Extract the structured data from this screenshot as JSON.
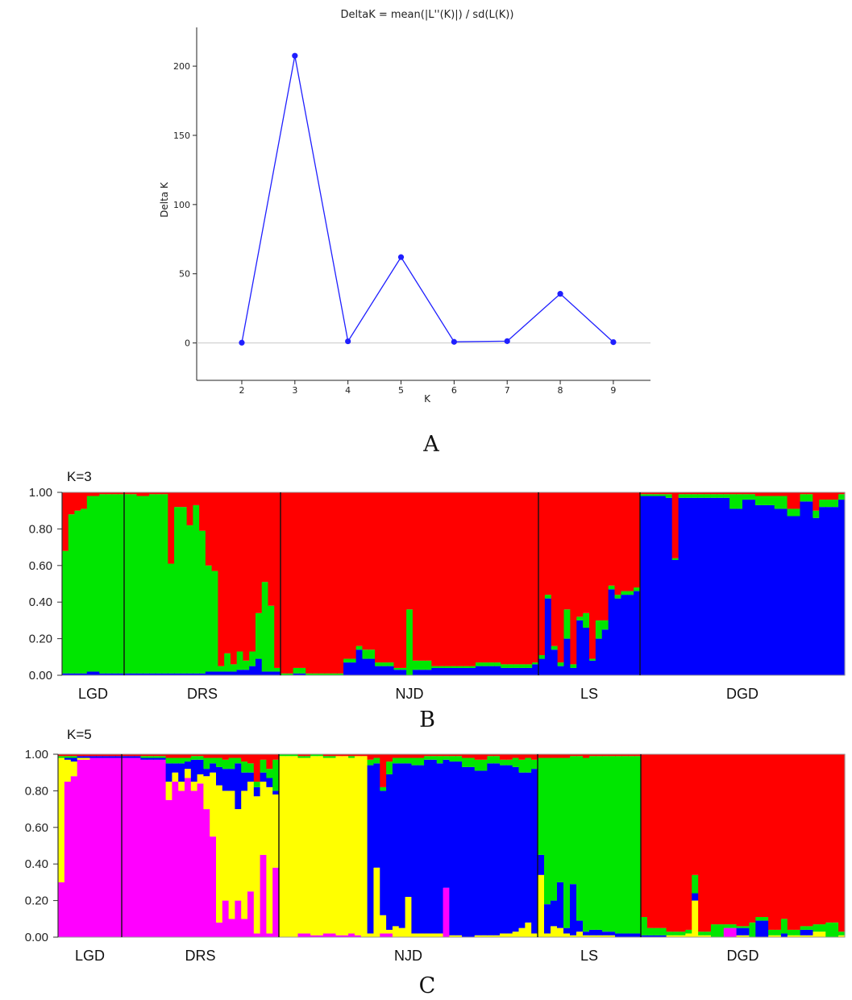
{
  "chart_data": [
    {
      "type": "line",
      "panel_label": "A",
      "title": "DeltaK = mean(|L''(K)|) / sd(L(K))",
      "xlabel": "K",
      "ylabel": "Delta K",
      "x": [
        2,
        3,
        4,
        5,
        6,
        7,
        8,
        9
      ],
      "x_ticks": [
        "2",
        "3",
        "4",
        "5",
        "6",
        "7",
        "8",
        "9"
      ],
      "y_ticks": [
        "0",
        "50",
        "100",
        "150",
        "200"
      ],
      "series": [
        {
          "values": [
            0.2,
            207.5,
            1.2,
            62.0,
            0.8,
            1.3,
            35.5,
            0.6
          ]
        }
      ],
      "xlim": [
        1.15,
        9.7
      ],
      "ylim": [
        -27,
        228
      ],
      "reference_line_y": 0,
      "color": "#1f1fff",
      "grid": false,
      "legend": "none"
    },
    {
      "type": "bar",
      "stacked": true,
      "panel_label": "B",
      "title": "K=3",
      "groups": [
        {
          "label": "LGD",
          "n": 10
        },
        {
          "label": "DRS",
          "n": 25
        },
        {
          "label": "NJD",
          "n": 41
        },
        {
          "label": "LS",
          "n": 16
        },
        {
          "label": "DGD",
          "n": 32
        }
      ],
      "y_ticks": [
        "1.00",
        "0.80",
        "0.60",
        "0.40",
        "0.20",
        "0.00"
      ],
      "ylim": [
        0,
        1
      ],
      "clusters": [
        {
          "color": "#0000ff"
        },
        {
          "color": "#00e600"
        },
        {
          "color": "#ff0000"
        }
      ],
      "anchors": [
        [
          0,
          0.01,
          0.67,
          0.32
        ],
        [
          1,
          0.01,
          0.87,
          0.12
        ],
        [
          2,
          0.01,
          0.89,
          0.1
        ],
        [
          3,
          0.01,
          0.9,
          0.09
        ],
        [
          4,
          0.02,
          0.96,
          0.02
        ],
        [
          6,
          0.01,
          0.98,
          0.01
        ],
        [
          9,
          0.01,
          0.98,
          0.01
        ],
        [
          10,
          0.01,
          0.98,
          0.01
        ],
        [
          12,
          0.01,
          0.97,
          0.02
        ],
        [
          14,
          0.01,
          0.98,
          0.01
        ],
        [
          17,
          0.01,
          0.6,
          0.39
        ],
        [
          18,
          0.01,
          0.91,
          0.08
        ],
        [
          20,
          0.01,
          0.81,
          0.18
        ],
        [
          21,
          0.01,
          0.92,
          0.07
        ],
        [
          22,
          0.01,
          0.78,
          0.21
        ],
        [
          23,
          0.02,
          0.58,
          0.4
        ],
        [
          24,
          0.02,
          0.55,
          0.43
        ],
        [
          25,
          0.02,
          0.03,
          0.95
        ],
        [
          26,
          0.02,
          0.1,
          0.88
        ],
        [
          27,
          0.02,
          0.04,
          0.94
        ],
        [
          28,
          0.03,
          0.1,
          0.87
        ],
        [
          29,
          0.03,
          0.05,
          0.92
        ],
        [
          30,
          0.05,
          0.08,
          0.87
        ],
        [
          31,
          0.09,
          0.25,
          0.66
        ],
        [
          32,
          0.02,
          0.49,
          0.49
        ],
        [
          33,
          0.02,
          0.36,
          0.62
        ],
        [
          34,
          0.02,
          0.02,
          0.96
        ],
        [
          35,
          0.0,
          0.01,
          0.99
        ],
        [
          37,
          0.01,
          0.03,
          0.96
        ],
        [
          39,
          0.0,
          0.01,
          0.99
        ],
        [
          45,
          0.07,
          0.02,
          0.91
        ],
        [
          47,
          0.14,
          0.02,
          0.84
        ],
        [
          48,
          0.09,
          0.05,
          0.86
        ],
        [
          50,
          0.05,
          0.02,
          0.93
        ],
        [
          53,
          0.03,
          0.01,
          0.96
        ],
        [
          55,
          0.0,
          0.36,
          0.64
        ],
        [
          56,
          0.03,
          0.05,
          0.92
        ],
        [
          59,
          0.04,
          0.01,
          0.95
        ],
        [
          62,
          0.04,
          0.01,
          0.95
        ],
        [
          66,
          0.05,
          0.02,
          0.93
        ],
        [
          70,
          0.04,
          0.02,
          0.94
        ],
        [
          75,
          0.06,
          0.01,
          0.93
        ],
        [
          76,
          0.09,
          0.02,
          0.89
        ],
        [
          77,
          0.42,
          0.02,
          0.56
        ],
        [
          78,
          0.14,
          0.02,
          0.84
        ],
        [
          79,
          0.05,
          0.02,
          0.93
        ],
        [
          80,
          0.2,
          0.16,
          0.64
        ],
        [
          81,
          0.04,
          0.02,
          0.94
        ],
        [
          82,
          0.3,
          0.02,
          0.68
        ],
        [
          83,
          0.26,
          0.08,
          0.66
        ],
        [
          84,
          0.08,
          0.01,
          0.91
        ],
        [
          85,
          0.2,
          0.1,
          0.7
        ],
        [
          86,
          0.25,
          0.05,
          0.7
        ],
        [
          87,
          0.47,
          0.02,
          0.51
        ],
        [
          88,
          0.42,
          0.02,
          0.56
        ],
        [
          89,
          0.44,
          0.02,
          0.54
        ],
        [
          91,
          0.46,
          0.02,
          0.52
        ],
        [
          92,
          0.98,
          0.01,
          0.01
        ],
        [
          96,
          0.97,
          0.02,
          0.01
        ],
        [
          97,
          0.63,
          0.01,
          0.36
        ],
        [
          98,
          0.97,
          0.02,
          0.01
        ],
        [
          102,
          0.97,
          0.02,
          0.01
        ],
        [
          106,
          0.91,
          0.08,
          0.01
        ],
        [
          108,
          0.96,
          0.03,
          0.01
        ],
        [
          110,
          0.93,
          0.05,
          0.02
        ],
        [
          113,
          0.91,
          0.07,
          0.02
        ],
        [
          115,
          0.87,
          0.04,
          0.09
        ],
        [
          117,
          0.95,
          0.04,
          0.01
        ],
        [
          119,
          0.86,
          0.04,
          0.1
        ],
        [
          120,
          0.92,
          0.04,
          0.04
        ],
        [
          123,
          0.96,
          0.03,
          0.01
        ]
      ]
    },
    {
      "type": "bar",
      "stacked": true,
      "panel_label": "C",
      "title": "K=5",
      "groups": [
        {
          "label": "LGD",
          "n": 10
        },
        {
          "label": "DRS",
          "n": 25
        },
        {
          "label": "NJD",
          "n": 41
        },
        {
          "label": "LS",
          "n": 16
        },
        {
          "label": "DGD",
          "n": 32
        }
      ],
      "y_ticks": [
        "1.00",
        "0.80",
        "0.60",
        "0.40",
        "0.20",
        "0.00"
      ],
      "ylim": [
        0,
        1
      ],
      "clusters": [
        {
          "color": "#ff00ff"
        },
        {
          "color": "#ffff00"
        },
        {
          "color": "#0000ff"
        },
        {
          "color": "#00e600"
        },
        {
          "color": "#ff0000"
        }
      ],
      "anchors": [
        [
          0,
          0.3,
          0.68,
          0.0,
          0.01,
          0.01
        ],
        [
          1,
          0.85,
          0.12,
          0.01,
          0.01,
          0.01
        ],
        [
          2,
          0.88,
          0.08,
          0.02,
          0.01,
          0.01
        ],
        [
          3,
          0.97,
          0.01,
          0.01,
          0.0,
          0.01
        ],
        [
          5,
          0.98,
          0.0,
          0.01,
          0.0,
          0.01
        ],
        [
          9,
          0.98,
          0.0,
          0.01,
          0.0,
          0.01
        ],
        [
          10,
          0.98,
          0.0,
          0.01,
          0.0,
          0.01
        ],
        [
          13,
          0.97,
          0.0,
          0.01,
          0.01,
          0.01
        ],
        [
          17,
          0.75,
          0.1,
          0.1,
          0.03,
          0.02
        ],
        [
          18,
          0.85,
          0.05,
          0.05,
          0.03,
          0.02
        ],
        [
          19,
          0.8,
          0.05,
          0.1,
          0.03,
          0.02
        ],
        [
          20,
          0.87,
          0.05,
          0.04,
          0.02,
          0.02
        ],
        [
          21,
          0.8,
          0.05,
          0.12,
          0.02,
          0.01
        ],
        [
          22,
          0.84,
          0.05,
          0.08,
          0.02,
          0.01
        ],
        [
          23,
          0.7,
          0.18,
          0.04,
          0.06,
          0.02
        ],
        [
          24,
          0.55,
          0.35,
          0.05,
          0.03,
          0.02
        ],
        [
          25,
          0.08,
          0.75,
          0.1,
          0.05,
          0.02
        ],
        [
          26,
          0.2,
          0.6,
          0.12,
          0.05,
          0.03
        ],
        [
          27,
          0.1,
          0.7,
          0.12,
          0.06,
          0.02
        ],
        [
          28,
          0.2,
          0.5,
          0.25,
          0.03,
          0.02
        ],
        [
          29,
          0.1,
          0.7,
          0.1,
          0.06,
          0.04
        ],
        [
          30,
          0.25,
          0.6,
          0.05,
          0.05,
          0.05
        ],
        [
          31,
          0.02,
          0.75,
          0.05,
          0.03,
          0.15
        ],
        [
          32,
          0.45,
          0.4,
          0.05,
          0.07,
          0.03
        ],
        [
          33,
          0.02,
          0.8,
          0.05,
          0.05,
          0.08
        ],
        [
          34,
          0.38,
          0.4,
          0.02,
          0.17,
          0.03
        ],
        [
          35,
          0.0,
          0.99,
          0.0,
          0.01,
          0.0
        ],
        [
          38,
          0.02,
          0.96,
          0.0,
          0.01,
          0.01
        ],
        [
          40,
          0.01,
          0.98,
          0.0,
          0.01,
          0.0
        ],
        [
          42,
          0.02,
          0.96,
          0.0,
          0.01,
          0.01
        ],
        [
          44,
          0.01,
          0.98,
          0.0,
          0.0,
          0.01
        ],
        [
          46,
          0.02,
          0.96,
          0.0,
          0.01,
          0.01
        ],
        [
          47,
          0.01,
          0.98,
          0.0,
          0.0,
          0.01
        ],
        [
          48,
          0.0,
          0.99,
          0.0,
          0.0,
          0.01
        ],
        [
          49,
          0.0,
          0.02,
          0.92,
          0.03,
          0.03
        ],
        [
          50,
          0.0,
          0.38,
          0.57,
          0.03,
          0.02
        ],
        [
          51,
          0.02,
          0.1,
          0.68,
          0.02,
          0.18
        ],
        [
          52,
          0.02,
          0.02,
          0.85,
          0.07,
          0.04
        ],
        [
          53,
          0.0,
          0.06,
          0.89,
          0.03,
          0.02
        ],
        [
          54,
          0.0,
          0.05,
          0.9,
          0.03,
          0.02
        ],
        [
          55,
          0.0,
          0.22,
          0.73,
          0.03,
          0.02
        ],
        [
          56,
          0.0,
          0.02,
          0.92,
          0.04,
          0.02
        ],
        [
          58,
          0.0,
          0.02,
          0.95,
          0.02,
          0.01
        ],
        [
          60,
          0.0,
          0.02,
          0.93,
          0.04,
          0.01
        ],
        [
          61,
          0.27,
          0.0,
          0.7,
          0.02,
          0.01
        ],
        [
          62,
          0.0,
          0.01,
          0.95,
          0.03,
          0.01
        ],
        [
          64,
          0.0,
          0.0,
          0.93,
          0.05,
          0.02
        ],
        [
          66,
          0.0,
          0.01,
          0.9,
          0.06,
          0.03
        ],
        [
          68,
          0.0,
          0.01,
          0.94,
          0.04,
          0.01
        ],
        [
          70,
          0.0,
          0.02,
          0.92,
          0.03,
          0.03
        ],
        [
          72,
          0.0,
          0.03,
          0.9,
          0.05,
          0.02
        ],
        [
          73,
          0.0,
          0.05,
          0.85,
          0.07,
          0.03
        ],
        [
          74,
          0.0,
          0.08,
          0.82,
          0.08,
          0.02
        ],
        [
          75,
          0.0,
          0.02,
          0.9,
          0.05,
          0.03
        ],
        [
          76,
          0.0,
          0.34,
          0.11,
          0.53,
          0.02
        ],
        [
          77,
          0.0,
          0.02,
          0.16,
          0.8,
          0.02
        ],
        [
          78,
          0.0,
          0.06,
          0.14,
          0.78,
          0.02
        ],
        [
          79,
          0.0,
          0.05,
          0.25,
          0.68,
          0.02
        ],
        [
          80,
          0.0,
          0.02,
          0.03,
          0.93,
          0.02
        ],
        [
          81,
          0.0,
          0.01,
          0.28,
          0.7,
          0.01
        ],
        [
          82,
          0.0,
          0.03,
          0.06,
          0.9,
          0.01
        ],
        [
          83,
          0.0,
          0.01,
          0.02,
          0.95,
          0.02
        ],
        [
          84,
          0.0,
          0.01,
          0.03,
          0.95,
          0.01
        ],
        [
          86,
          0.0,
          0.01,
          0.02,
          0.96,
          0.01
        ],
        [
          88,
          0.0,
          0.0,
          0.02,
          0.97,
          0.01
        ],
        [
          90,
          0.0,
          0.0,
          0.02,
          0.97,
          0.01
        ],
        [
          91,
          0.0,
          0.0,
          0.02,
          0.97,
          0.01
        ],
        [
          92,
          0.0,
          0.0,
          0.01,
          0.1,
          0.89
        ],
        [
          93,
          0.0,
          0.0,
          0.01,
          0.04,
          0.95
        ],
        [
          96,
          0.0,
          0.01,
          0.0,
          0.02,
          0.97
        ],
        [
          99,
          0.0,
          0.02,
          0.0,
          0.02,
          0.96
        ],
        [
          100,
          0.0,
          0.2,
          0.04,
          0.1,
          0.66
        ],
        [
          101,
          0.0,
          0.01,
          0.0,
          0.02,
          0.97
        ],
        [
          103,
          0.0,
          0.0,
          0.0,
          0.07,
          0.93
        ],
        [
          105,
          0.05,
          0.0,
          0.0,
          0.02,
          0.93
        ],
        [
          107,
          0.0,
          0.01,
          0.04,
          0.01,
          0.94
        ],
        [
          109,
          0.0,
          0.0,
          0.0,
          0.08,
          0.92
        ],
        [
          110,
          0.0,
          0.0,
          0.09,
          0.02,
          0.89
        ],
        [
          112,
          0.0,
          0.01,
          0.0,
          0.03,
          0.96
        ],
        [
          114,
          0.0,
          0.0,
          0.02,
          0.08,
          0.9
        ],
        [
          115,
          0.0,
          0.01,
          0.0,
          0.03,
          0.96
        ],
        [
          117,
          0.0,
          0.01,
          0.03,
          0.02,
          0.94
        ],
        [
          119,
          0.0,
          0.03,
          0.0,
          0.04,
          0.93
        ],
        [
          121,
          0.0,
          0.0,
          0.0,
          0.08,
          0.92
        ],
        [
          123,
          0.0,
          0.01,
          0.0,
          0.02,
          0.97
        ]
      ]
    }
  ]
}
